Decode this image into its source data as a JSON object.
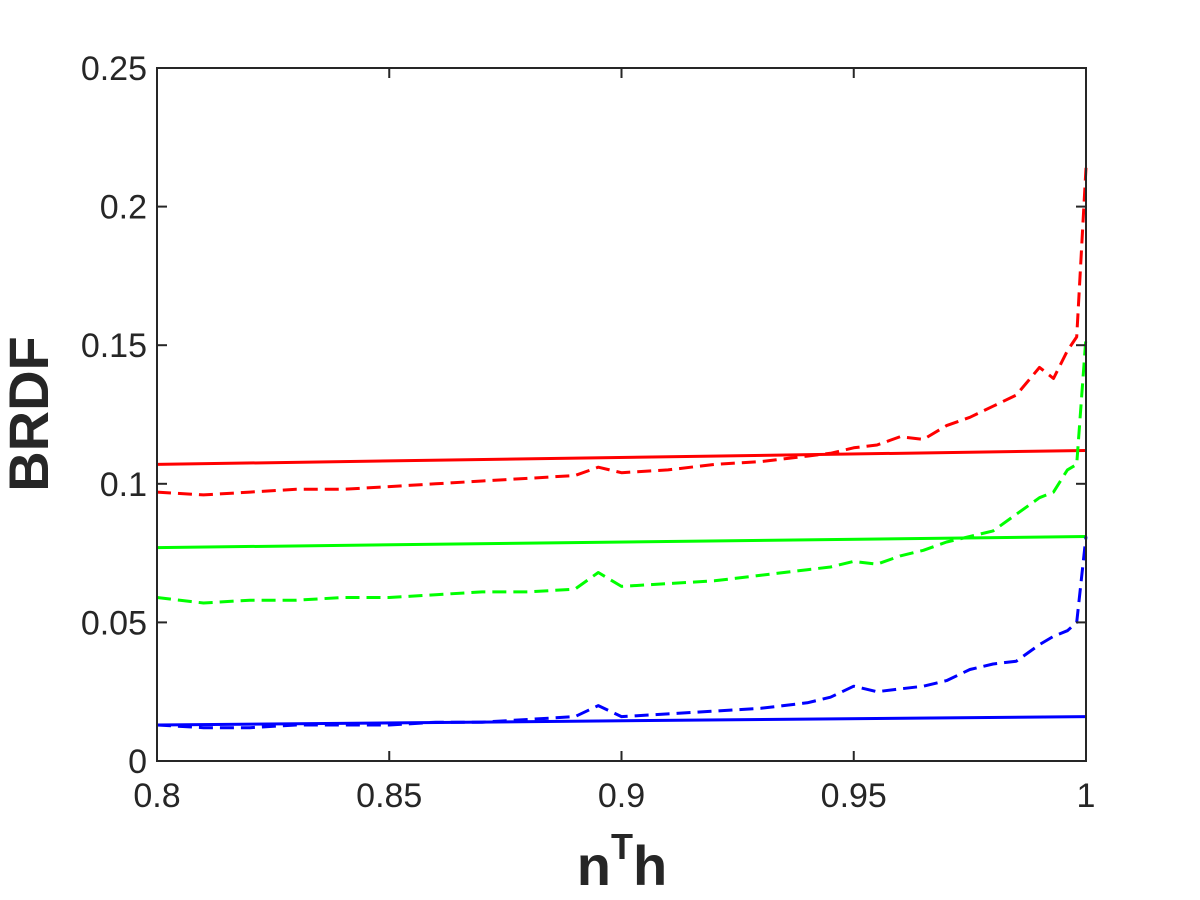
{
  "chart_data": {
    "type": "line",
    "title": "",
    "xlabel": {
      "base": "n",
      "sup": "T",
      "tail": "h"
    },
    "ylabel": "BRDF",
    "xlim": [
      0.8,
      1.0
    ],
    "ylim": [
      0,
      0.25
    ],
    "xticks": [
      0.8,
      0.85,
      0.9,
      0.95,
      1.0
    ],
    "xtick_labels": [
      "0.8",
      "0.85",
      "0.9",
      "0.95",
      "1"
    ],
    "yticks": [
      0,
      0.05,
      0.1,
      0.15,
      0.2,
      0.25
    ],
    "ytick_labels": [
      "0",
      "0.05",
      "0.1",
      "0.15",
      "0.2",
      "0.25"
    ],
    "grid": false,
    "legend": "none",
    "series": [
      {
        "color": "#ff0000",
        "style": "solid",
        "points": [
          [
            0.8,
            0.107
          ],
          [
            1.0,
            0.112
          ]
        ]
      },
      {
        "color": "#ff0000",
        "style": "dashed",
        "points": [
          [
            0.8,
            0.097
          ],
          [
            0.81,
            0.096
          ],
          [
            0.82,
            0.097
          ],
          [
            0.83,
            0.098
          ],
          [
            0.84,
            0.098
          ],
          [
            0.85,
            0.099
          ],
          [
            0.86,
            0.1
          ],
          [
            0.87,
            0.101
          ],
          [
            0.88,
            0.102
          ],
          [
            0.89,
            0.103
          ],
          [
            0.895,
            0.106
          ],
          [
            0.9,
            0.104
          ],
          [
            0.91,
            0.105
          ],
          [
            0.92,
            0.107
          ],
          [
            0.93,
            0.108
          ],
          [
            0.94,
            0.11
          ],
          [
            0.945,
            0.111
          ],
          [
            0.95,
            0.113
          ],
          [
            0.955,
            0.114
          ],
          [
            0.96,
            0.117
          ],
          [
            0.965,
            0.116
          ],
          [
            0.97,
            0.121
          ],
          [
            0.975,
            0.124
          ],
          [
            0.98,
            0.128
          ],
          [
            0.985,
            0.132
          ],
          [
            0.99,
            0.142
          ],
          [
            0.993,
            0.138
          ],
          [
            0.996,
            0.148
          ],
          [
            0.998,
            0.153
          ],
          [
            1.0,
            0.214
          ]
        ]
      },
      {
        "color": "#00ff00",
        "style": "solid",
        "points": [
          [
            0.8,
            0.077
          ],
          [
            1.0,
            0.081
          ]
        ]
      },
      {
        "color": "#00ff00",
        "style": "dashed",
        "points": [
          [
            0.8,
            0.059
          ],
          [
            0.81,
            0.057
          ],
          [
            0.82,
            0.058
          ],
          [
            0.83,
            0.058
          ],
          [
            0.84,
            0.059
          ],
          [
            0.85,
            0.059
          ],
          [
            0.86,
            0.06
          ],
          [
            0.87,
            0.061
          ],
          [
            0.88,
            0.061
          ],
          [
            0.89,
            0.062
          ],
          [
            0.895,
            0.068
          ],
          [
            0.9,
            0.063
          ],
          [
            0.91,
            0.064
          ],
          [
            0.92,
            0.065
          ],
          [
            0.93,
            0.067
          ],
          [
            0.94,
            0.069
          ],
          [
            0.945,
            0.07
          ],
          [
            0.95,
            0.072
          ],
          [
            0.955,
            0.071
          ],
          [
            0.96,
            0.074
          ],
          [
            0.965,
            0.076
          ],
          [
            0.97,
            0.079
          ],
          [
            0.975,
            0.081
          ],
          [
            0.98,
            0.083
          ],
          [
            0.985,
            0.089
          ],
          [
            0.99,
            0.095
          ],
          [
            0.993,
            0.097
          ],
          [
            0.996,
            0.105
          ],
          [
            0.998,
            0.107
          ],
          [
            1.0,
            0.153
          ]
        ]
      },
      {
        "color": "#0000ff",
        "style": "solid",
        "points": [
          [
            0.8,
            0.013
          ],
          [
            1.0,
            0.016
          ]
        ]
      },
      {
        "color": "#0000ff",
        "style": "dashed",
        "points": [
          [
            0.8,
            0.013
          ],
          [
            0.81,
            0.012
          ],
          [
            0.82,
            0.012
          ],
          [
            0.83,
            0.013
          ],
          [
            0.84,
            0.013
          ],
          [
            0.85,
            0.013
          ],
          [
            0.86,
            0.014
          ],
          [
            0.87,
            0.014
          ],
          [
            0.88,
            0.015
          ],
          [
            0.89,
            0.016
          ],
          [
            0.895,
            0.02
          ],
          [
            0.9,
            0.016
          ],
          [
            0.91,
            0.017
          ],
          [
            0.92,
            0.018
          ],
          [
            0.93,
            0.019
          ],
          [
            0.94,
            0.021
          ],
          [
            0.945,
            0.023
          ],
          [
            0.95,
            0.027
          ],
          [
            0.955,
            0.025
          ],
          [
            0.96,
            0.026
          ],
          [
            0.965,
            0.027
          ],
          [
            0.97,
            0.029
          ],
          [
            0.975,
            0.033
          ],
          [
            0.98,
            0.035
          ],
          [
            0.985,
            0.036
          ],
          [
            0.99,
            0.042
          ],
          [
            0.993,
            0.045
          ],
          [
            0.996,
            0.047
          ],
          [
            0.998,
            0.05
          ],
          [
            1.0,
            0.081
          ]
        ]
      }
    ]
  }
}
